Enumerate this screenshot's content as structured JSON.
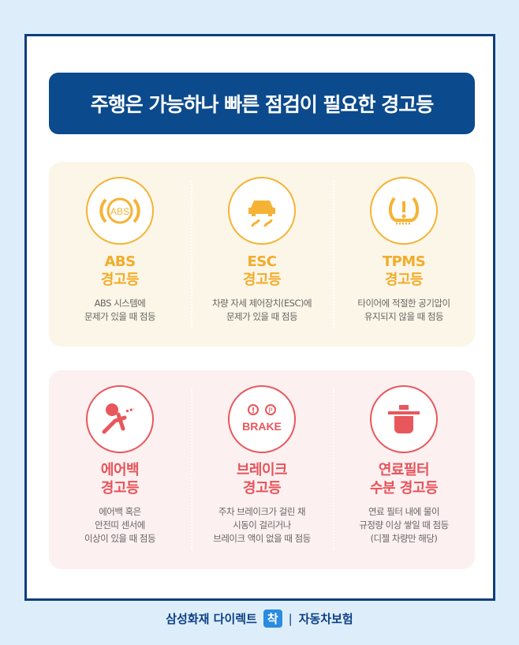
{
  "title": "주행은 가능하나 빠른 점검이 필요한 경고등",
  "colors": {
    "navy": "#0b4a8c",
    "yellow": "#f2ac2a",
    "red": "#e5545a"
  },
  "yellow_items": [
    {
      "icon": "abs-warning-icon",
      "name1": "ABS",
      "name2": "경고등",
      "icon_text": "ABS",
      "desc": [
        "ABS 시스템에",
        "문제가 있을 때 점등"
      ]
    },
    {
      "icon": "esc-skid-car-icon",
      "name1": "ESC",
      "name2": "경고등",
      "desc": [
        "차량 자세 제어장치(ESC)에",
        "문제가 있을 때 점등"
      ]
    },
    {
      "icon": "tire-pressure-icon",
      "name1": "TPMS",
      "name2": "경고등",
      "desc": [
        "타이어에 적절한 공기압이",
        "유지되지 않을 때 점등"
      ]
    }
  ],
  "red_items": [
    {
      "icon": "airbag-icon",
      "name1": "에어백",
      "name2": "경고등",
      "desc": [
        "에어백 혹은",
        "안전띠 센서에",
        "이상이 있을 때 점등"
      ]
    },
    {
      "icon": "brake-warning-icon",
      "name1": "브레이크",
      "name2": "경고등",
      "icon_text": "BRAKE",
      "desc": [
        "주차 브레이크가 걸린 채",
        "시동이 걸리거나",
        "브레이크 액이 없을 때 점등"
      ]
    },
    {
      "icon": "fuel-filter-water-icon",
      "name1": "연료필터",
      "name2": "수분 경고등",
      "desc": [
        "연료 필터 내에 물이",
        "규정량 이상 쌓일 때 점등",
        "(디젤 차량만 해당)"
      ]
    }
  ],
  "footer": {
    "brand": "삼성화재 다이렉트",
    "badge": "착",
    "separator": "|",
    "product": "자동차보험"
  }
}
